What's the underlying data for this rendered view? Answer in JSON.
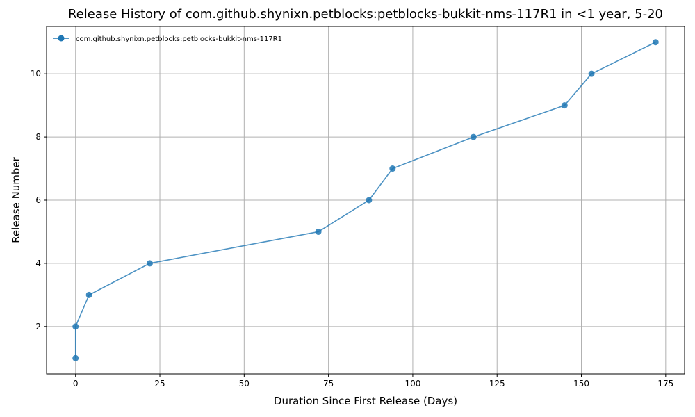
{
  "chart_data": {
    "type": "line",
    "title": "Release History of com.github.shynixn.petblocks:petblocks-bukkit-nms-117R1 in <1 year, 5-20",
    "xlabel": "Duration Since First Release (Days)",
    "ylabel": "Release Number",
    "xlim": [
      -8.6,
      180.6
    ],
    "ylim": [
      0.5,
      11.5
    ],
    "xticks": [
      0,
      25,
      50,
      75,
      100,
      125,
      150,
      175
    ],
    "yticks": [
      2,
      4,
      6,
      8,
      10
    ],
    "grid": true,
    "legend_position": "top-left",
    "series": [
      {
        "name": "com.github.shynixn.petblocks:petblocks-bukkit-nms-117R1",
        "color": "#1f77b4",
        "marker": "circle",
        "x": [
          0,
          0,
          4,
          22,
          72,
          87,
          94,
          118,
          145,
          153,
          172
        ],
        "y": [
          1,
          2,
          3,
          4,
          5,
          6,
          7,
          8,
          9,
          10,
          11
        ]
      }
    ]
  }
}
